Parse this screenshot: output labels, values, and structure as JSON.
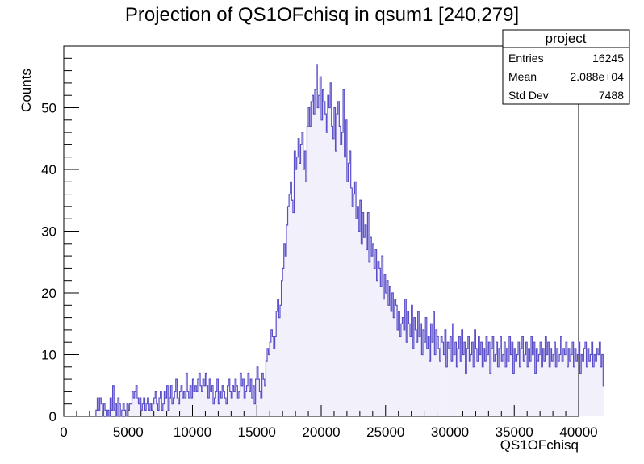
{
  "chart_data": {
    "type": "bar",
    "title": "Projection of QS1OFchisq in qsum1 [240,279]",
    "xlabel": "QS1OFchisq",
    "ylabel": "Counts",
    "xlim": [
      0,
      40000
    ],
    "ylim": [
      0,
      60
    ],
    "x_ticks": [
      0,
      5000,
      10000,
      15000,
      20000,
      25000,
      30000,
      35000,
      40000
    ],
    "x_tick_labels": [
      "0",
      "5000",
      "10000",
      "15000",
      "20000",
      "25000",
      "30000",
      "35000",
      "40000"
    ],
    "y_ticks": [
      0,
      10,
      20,
      30,
      40,
      50
    ],
    "y_tick_labels": [
      "0",
      "10",
      "20",
      "30",
      "40",
      "50"
    ],
    "bin_width": 100,
    "series": [
      {
        "color": "#5a4fc8",
        "x_start": 2500,
        "values": [
          1,
          3,
          1,
          3,
          2,
          0,
          2,
          1,
          0,
          1,
          0,
          3,
          1,
          5,
          1,
          2,
          0,
          3,
          2,
          0,
          1,
          2,
          1,
          0,
          2,
          1,
          2,
          2,
          4,
          3,
          4,
          5,
          3,
          2,
          3,
          1,
          2,
          3,
          1,
          2,
          3,
          1,
          2,
          1,
          2,
          3,
          4,
          2,
          1,
          3,
          4,
          1,
          2,
          4,
          3,
          5,
          1,
          3,
          5,
          2,
          3,
          4,
          6,
          3,
          2,
          4,
          5,
          3,
          4,
          3,
          7,
          4,
          3,
          5,
          3,
          6,
          4,
          5,
          4,
          6,
          7,
          5,
          4,
          6,
          5,
          7,
          5,
          3,
          6,
          4,
          5,
          2,
          3,
          4,
          6,
          2,
          4,
          3,
          5,
          4,
          3,
          2,
          5,
          6,
          4,
          3,
          5,
          4,
          6,
          5,
          3,
          4,
          7,
          5,
          6,
          3,
          4,
          5,
          7,
          4,
          6,
          3,
          5,
          2,
          6,
          8,
          6,
          4,
          3,
          7,
          6,
          5,
          9,
          11,
          10,
          12,
          14,
          13,
          11,
          13,
          17,
          19,
          16,
          18,
          22,
          24,
          28,
          26,
          31,
          34,
          36,
          38,
          35,
          33,
          43,
          40,
          42,
          45,
          41,
          44,
          46,
          40,
          43,
          38,
          47,
          50,
          47,
          51,
          52,
          49,
          53,
          57,
          50,
          52,
          55,
          48,
          53,
          51,
          49,
          46,
          52,
          50,
          54,
          47,
          45,
          50,
          43,
          49,
          51,
          47,
          44,
          46,
          53,
          42,
          48,
          38,
          41,
          43,
          37,
          34,
          36,
          38,
          32,
          34,
          30,
          35,
          28,
          33,
          29,
          31,
          27,
          33,
          25,
          29,
          26,
          28,
          24,
          27,
          22,
          25,
          24,
          21,
          26,
          19,
          23,
          20,
          22,
          18,
          21,
          17,
          20,
          16,
          19,
          18,
          14,
          17,
          13,
          15,
          16,
          14,
          19,
          12,
          17,
          15,
          13,
          18,
          11,
          16,
          14,
          12,
          17,
          13,
          15,
          10,
          14,
          12,
          16,
          11,
          13,
          9,
          15,
          12,
          17,
          10,
          14,
          13,
          11,
          9,
          13,
          12,
          10,
          14,
          8,
          12,
          11,
          13,
          9,
          15,
          10,
          12,
          8,
          11,
          13,
          9,
          14,
          10,
          12,
          7,
          11,
          13,
          9,
          10,
          12,
          8,
          14,
          11,
          9,
          13,
          10,
          12,
          8,
          11,
          9,
          13,
          10,
          12,
          7,
          11,
          13,
          9,
          10,
          12,
          8,
          11,
          13,
          9,
          10,
          12,
          8,
          11,
          9,
          13,
          10,
          12,
          7,
          11,
          9,
          10,
          12,
          8,
          11,
          13,
          9,
          10,
          12,
          8,
          11,
          9,
          13,
          10,
          12,
          7,
          11,
          9,
          10,
          12,
          8,
          11,
          9,
          13,
          10,
          12,
          8,
          11,
          9,
          10,
          12,
          8,
          11,
          9,
          10,
          13,
          9,
          11,
          10,
          12,
          8,
          11,
          9,
          10,
          12,
          8,
          11,
          9,
          10,
          12,
          7,
          10,
          9,
          11,
          12,
          8,
          11,
          9,
          10,
          12,
          8,
          10,
          9,
          11,
          10,
          12,
          8,
          10,
          5
        ]
      }
    ],
    "stats_box": {
      "title": "project",
      "rows": [
        {
          "label": "Entries",
          "value": "16245"
        },
        {
          "label": "Mean",
          "value": "2.088e+04"
        },
        {
          "label": "Std Dev",
          "value": "7488"
        }
      ]
    }
  }
}
